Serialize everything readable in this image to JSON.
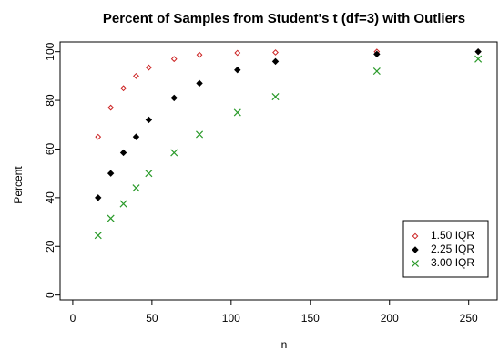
{
  "chart_data": {
    "type": "scatter",
    "title": "Percent of Samples from Student's t (df=3) with Outliers",
    "xlabel": "n",
    "ylabel": "Percent",
    "xlim": [
      -8,
      268
    ],
    "ylim": [
      -2,
      104
    ],
    "xticks": [
      0,
      50,
      100,
      150,
      200,
      250
    ],
    "yticks": [
      0,
      20,
      40,
      60,
      80,
      100
    ],
    "grid": false,
    "legend_position": "bottom-right",
    "series": [
      {
        "name": "1.50 IQR",
        "marker": "open-diamond",
        "color": "#cc2222",
        "x": [
          16,
          24,
          32,
          40,
          48,
          64,
          80,
          104,
          128,
          192,
          256
        ],
        "y": [
          65,
          77,
          85,
          90,
          93.5,
          97,
          98.7,
          99.5,
          99.7,
          100,
          100
        ]
      },
      {
        "name": "2.25 IQR",
        "marker": "filled-diamond",
        "color": "#000000",
        "x": [
          16,
          24,
          32,
          40,
          48,
          64,
          80,
          104,
          128,
          192,
          256
        ],
        "y": [
          40,
          50,
          58.5,
          65,
          72,
          81,
          87,
          92.5,
          96,
          99,
          100
        ]
      },
      {
        "name": "3.00 IQR",
        "marker": "x",
        "color": "#2a9a2a",
        "x": [
          16,
          24,
          32,
          40,
          48,
          64,
          80,
          104,
          128,
          192,
          256
        ],
        "y": [
          24.5,
          31.5,
          37.5,
          44,
          50,
          58.5,
          66,
          75,
          81.5,
          92,
          97
        ]
      }
    ]
  }
}
